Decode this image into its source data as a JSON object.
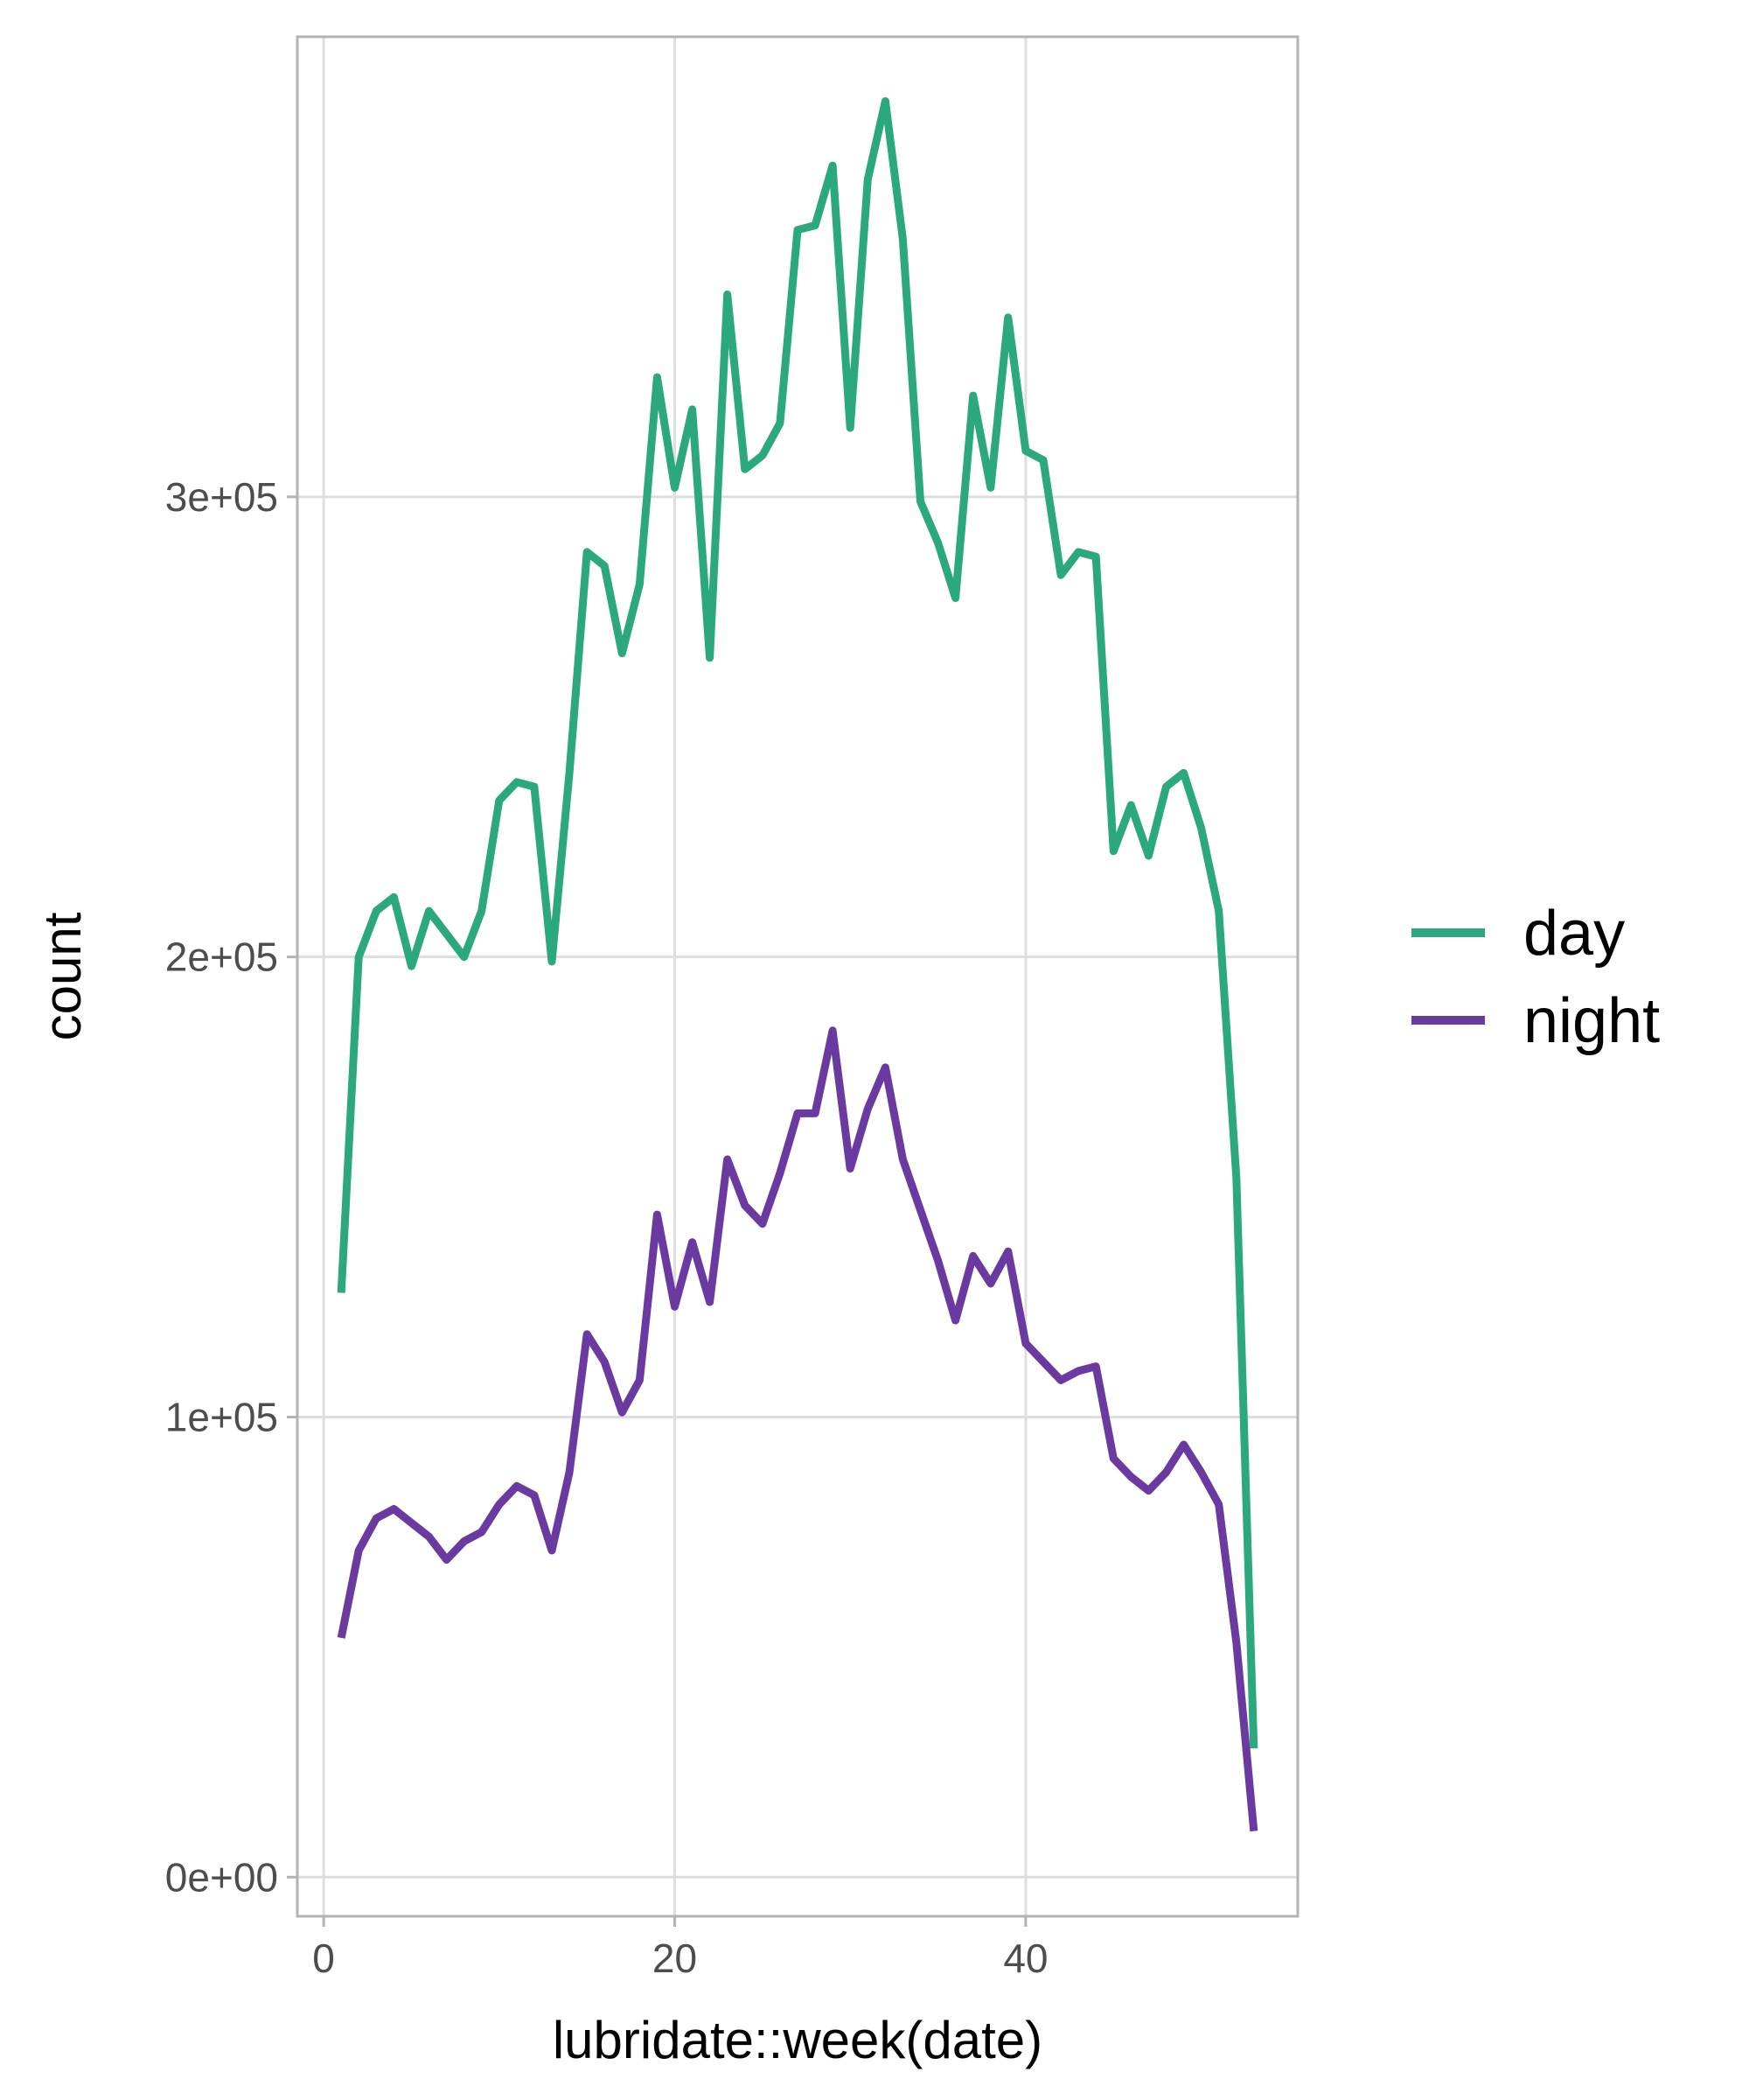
{
  "chart_data": {
    "type": "line",
    "xlabel": "lubridate::week(date)",
    "ylabel": "count",
    "xlim": [
      -1.5,
      55.5
    ],
    "ylim": [
      -8500,
      400000
    ],
    "x_ticks": [
      {
        "value": 0,
        "label": "0"
      },
      {
        "value": 20,
        "label": "20"
      },
      {
        "value": 40,
        "label": "40"
      }
    ],
    "y_ticks": [
      {
        "value": 0,
        "label": "0e+00"
      },
      {
        "value": 100000,
        "label": "1e+05"
      },
      {
        "value": 200000,
        "label": "2e+05"
      },
      {
        "value": 300000,
        "label": "3e+05"
      }
    ],
    "grid": true,
    "legend_position": "right",
    "x": [
      1,
      2,
      3,
      4,
      5,
      6,
      7,
      8,
      9,
      10,
      11,
      12,
      13,
      14,
      15,
      16,
      17,
      18,
      19,
      20,
      21,
      22,
      23,
      24,
      25,
      26,
      27,
      28,
      29,
      30,
      31,
      32,
      33,
      34,
      35,
      36,
      37,
      38,
      39,
      40,
      41,
      42,
      43,
      44,
      45,
      46,
      47,
      48,
      49,
      50,
      51,
      52,
      53
    ],
    "series": [
      {
        "name": "day",
        "color": "#2ca87f",
        "values": [
          127000,
          200000,
          210000,
          213000,
          198000,
          210000,
          205000,
          200000,
          210000,
          234000,
          238000,
          237000,
          199000,
          240000,
          288000,
          285000,
          266000,
          281000,
          326000,
          302000,
          319000,
          265000,
          344000,
          306000,
          309000,
          316000,
          358000,
          359000,
          372000,
          315000,
          369000,
          386000,
          356000,
          299000,
          290000,
          278000,
          322000,
          302000,
          339000,
          310000,
          308000,
          283000,
          288000,
          287000,
          223000,
          233000,
          222000,
          237000,
          240000,
          228000,
          210000,
          152000,
          28000
        ]
      },
      {
        "name": "night",
        "color": "#6a3aa0",
        "values": [
          52000,
          71000,
          78000,
          80000,
          77000,
          74000,
          69000,
          73000,
          75000,
          81000,
          85000,
          83000,
          71000,
          88000,
          118000,
          112000,
          101000,
          108000,
          144000,
          124000,
          138000,
          125000,
          156000,
          146000,
          142000,
          153000,
          166000,
          166000,
          184000,
          154000,
          167000,
          176000,
          156000,
          145000,
          134000,
          121000,
          135000,
          129000,
          136000,
          116000,
          112000,
          108000,
          110000,
          111000,
          91000,
          87000,
          84000,
          88000,
          94000,
          88000,
          81000,
          51000,
          10000
        ]
      }
    ]
  }
}
